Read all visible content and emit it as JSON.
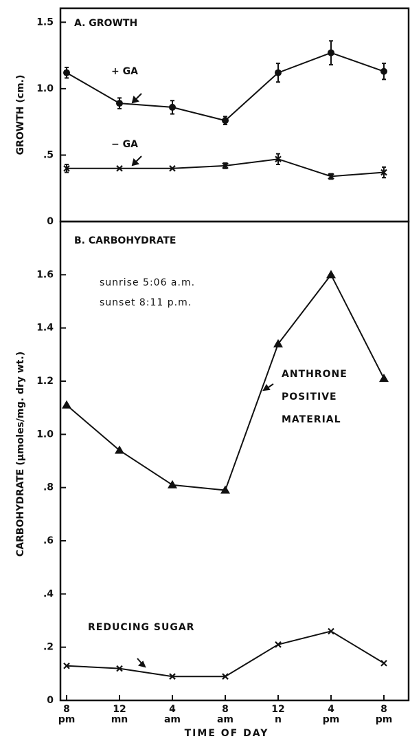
{
  "chart_data": [
    {
      "type": "line",
      "title": "A. GROWTH",
      "ylabel": "GROWTH (cm.)",
      "ylim": [
        0,
        1.6
      ],
      "yticks": [
        0,
        {
          "value": 0.5,
          "label": ".5"
        },
        {
          "value": 1.0,
          "label": "1.0"
        },
        1.5
      ],
      "annotations": [
        "+ GA",
        "− GA"
      ],
      "series": [
        {
          "name": "+ GA",
          "marker": "circle",
          "color": "#111111",
          "values": [
            1.12,
            0.89,
            0.86,
            0.76,
            1.12,
            1.27,
            1.13
          ],
          "errors": [
            0.04,
            0.04,
            0.05,
            0.03,
            0.07,
            0.09,
            0.06
          ]
        },
        {
          "name": "− GA",
          "marker": "x",
          "color": "#111111",
          "values": [
            0.4,
            0.4,
            0.4,
            0.42,
            0.47,
            0.34,
            0.37
          ],
          "errors": [
            0.03,
            0,
            0,
            0.02,
            0.04,
            0.02,
            0.04
          ]
        }
      ]
    },
    {
      "type": "line",
      "title": "B. CARBOHYDRATE",
      "ylabel": "CARBOHYDRATE (µmoles/mg. dry wt.)",
      "xlabel": "TIME OF DAY",
      "categories": [
        "8",
        "12",
        "4",
        "8",
        "12",
        "4",
        "8"
      ],
      "category_periods": [
        "pm",
        "mn",
        "am",
        "am",
        "n",
        "pm",
        "pm"
      ],
      "ylim": [
        0,
        1.8
      ],
      "yticks": [
        0,
        {
          "value": 0.2,
          "label": ".2"
        },
        {
          "value": 0.4,
          "label": ".4"
        },
        {
          "value": 0.6,
          "label": ".6"
        },
        {
          "value": 0.8,
          "label": ".8"
        },
        {
          "value": 1.0,
          "label": "1.0"
        },
        1.2,
        1.4,
        1.6
      ],
      "notes": [
        "sunrise 5:06 a.m.",
        "sunset 8:11 p.m."
      ],
      "annotations": [
        [
          "ANTHRONE",
          "POSITIVE",
          "MATERIAL"
        ],
        "REDUCING SUGAR"
      ],
      "series": [
        {
          "name": "ANTHRONE POSITIVE MATERIAL",
          "marker": "triangle",
          "color": "#111111",
          "values": [
            1.11,
            0.94,
            0.81,
            0.79,
            1.34,
            1.6,
            1.21
          ]
        },
        {
          "name": "REDUCING SUGAR",
          "marker": "x",
          "color": "#111111",
          "values": [
            0.13,
            0.12,
            0.09,
            0.09,
            0.21,
            0.26,
            0.14
          ]
        }
      ]
    }
  ]
}
